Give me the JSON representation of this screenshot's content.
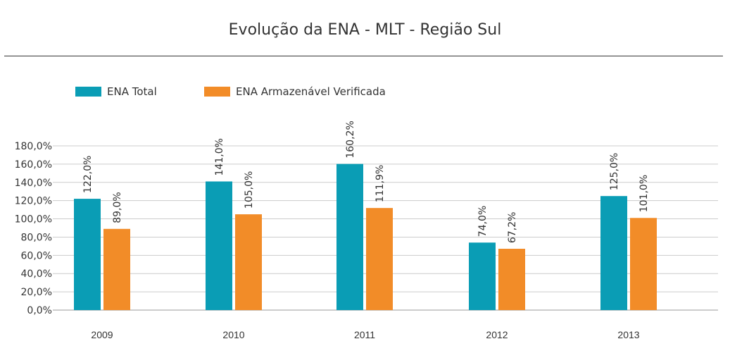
{
  "chart_data": {
    "type": "bar",
    "title": "Evolução da ENA - MLT - Região Sul",
    "xlabel": "",
    "ylabel": "",
    "ylim": [
      0,
      180
    ],
    "yticks": [
      "0,0%",
      "20,0%",
      "40,0%",
      "60,0%",
      "80,0%",
      "100,0%",
      "120,0%",
      "140,0%",
      "160,0%",
      "180,0%"
    ],
    "grid": true,
    "legend_position": "top-left",
    "categories": [
      "2009",
      "2010",
      "2011",
      "2012",
      "2013"
    ],
    "series": [
      {
        "name": "ENA Total",
        "color": "#0a9db5",
        "values": [
          122.0,
          141.0,
          160.2,
          74.0,
          125.0
        ],
        "labels": [
          "122,0%",
          "141,0%",
          "160,2%",
          "74,0%",
          "125,0%"
        ]
      },
      {
        "name": "ENA Armazenável Verificada",
        "color": "#f28c28",
        "values": [
          89.0,
          105.0,
          111.9,
          67.2,
          101.0
        ],
        "labels": [
          "89,0%",
          "105,0%",
          "111,9%",
          "67,2%",
          "101,0%"
        ]
      }
    ]
  }
}
